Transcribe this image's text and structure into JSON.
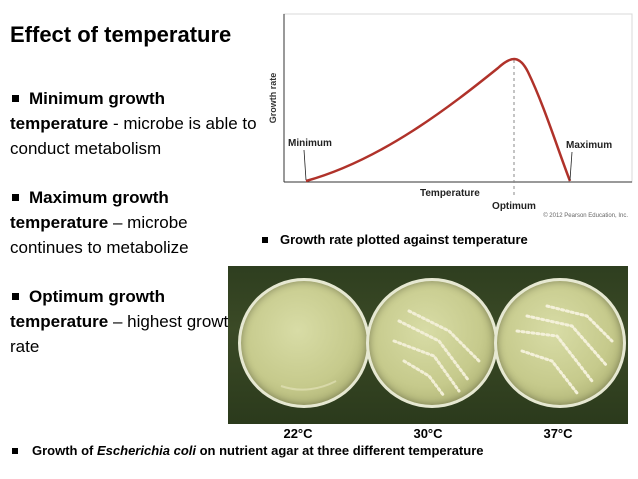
{
  "title": "Effect of temperature",
  "bullets": [
    {
      "term": "Minimum growth temperature",
      "rest": " - microbe is able to conduct metabolism"
    },
    {
      "term": "Maximum growth temperature",
      "rest": " – microbe continues to metabolize"
    },
    {
      "term": "Optimum growth temperature",
      "rest": " – highest growth rate"
    }
  ],
  "graph": {
    "ylabel": "Growth rate",
    "xlabel": "Temperature",
    "minimum_label": "Minimum",
    "maximum_label": "Maximum",
    "optimum_label": "Optimum",
    "copyright": "© 2012 Pearson Education, Inc.",
    "curve_color": "#b0322a"
  },
  "caption_graph": "Growth rate plotted against temperature",
  "photo": {
    "temps": [
      "22°C",
      "30°C",
      "37°C"
    ]
  },
  "caption_photo": {
    "before": "Growth of ",
    "italic": "Escherichia coli",
    "after": " on nutrient agar at three different temperature"
  }
}
